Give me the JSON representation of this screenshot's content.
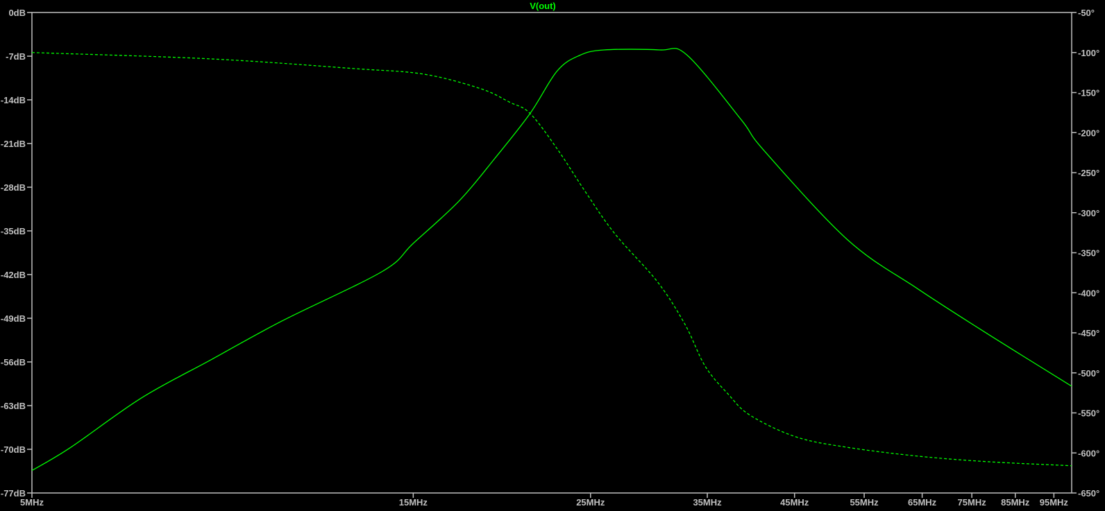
{
  "colors": {
    "background": "#000000",
    "axis": "#c0c0c0",
    "trace": "#00ff00"
  },
  "chart_data": {
    "type": "line",
    "title": "V(out)",
    "x_scale": "log",
    "xlim_mhz": [
      5,
      100
    ],
    "x_ticks": [
      5,
      15,
      25,
      35,
      45,
      55,
      65,
      75,
      85,
      95
    ],
    "x_tick_labels": [
      "5MHz",
      "15MHz",
      "25MHz",
      "35MHz",
      "45MHz",
      "55MHz",
      "65MHz",
      "75MHz",
      "85MHz",
      "95MHz"
    ],
    "y_left": {
      "lim": [
        -77,
        0
      ],
      "ticks": [
        0,
        -7,
        -14,
        -21,
        -28,
        -35,
        -42,
        -49,
        -56,
        -63,
        -70,
        -77
      ],
      "tick_labels": [
        "0dB",
        "-7dB",
        "-14dB",
        "-21dB",
        "-28dB",
        "-35dB",
        "-42dB",
        "-49dB",
        "-56dB",
        "-63dB",
        "-70dB",
        "-77dB"
      ]
    },
    "y_right": {
      "lim": [
        -650,
        -50
      ],
      "ticks": [
        -50,
        -100,
        -150,
        -200,
        -250,
        -300,
        -350,
        -400,
        -450,
        -500,
        -550,
        -600,
        -650
      ],
      "tick_labels": [
        "-50°",
        "-100°",
        "-150°",
        "-200°",
        "-250°",
        "-300°",
        "-350°",
        "-400°",
        "-450°",
        "-500°",
        "-550°",
        "-600°",
        "-650°"
      ]
    },
    "grid": false,
    "series": [
      {
        "name": "V(out)",
        "quantity": "magnitude",
        "axis": "left",
        "style": "solid",
        "x": [
          5,
          5.59,
          6.85,
          8.39,
          10.29,
          13.72,
          15,
          17.12,
          18.97,
          21,
          22.7,
          24.2,
          26,
          30.5,
          33,
          38.6,
          41.2,
          52.4,
          64.2,
          78.7,
          100
        ],
        "y": [
          -73.4,
          -69.7,
          -61.8,
          -55.6,
          -49.4,
          -41.5,
          -37,
          -30.2,
          -23.4,
          -16.2,
          -9.4,
          -6.9,
          -6.0,
          -6.0,
          -6.8,
          -17.2,
          -22.1,
          -36.4,
          -44.3,
          -51.6,
          -59.9
        ]
      },
      {
        "name": "V(out)",
        "quantity": "phase",
        "axis": "right",
        "style": "dashed",
        "x": [
          5,
          8.39,
          12.63,
          15.46,
          18.2,
          19.8,
          21,
          22.7,
          24.6,
          26.8,
          30.3,
          32.8,
          34.8,
          37.2,
          39.6,
          45.2,
          52.4,
          64.2,
          78.7,
          100
        ],
        "y": [
          -100,
          -108,
          -120,
          -127,
          -145,
          -162,
          -176,
          -220,
          -273,
          -326,
          -386,
          -439,
          -492,
          -527,
          -553,
          -580,
          -593,
          -604,
          -611,
          -616
        ]
      }
    ]
  }
}
